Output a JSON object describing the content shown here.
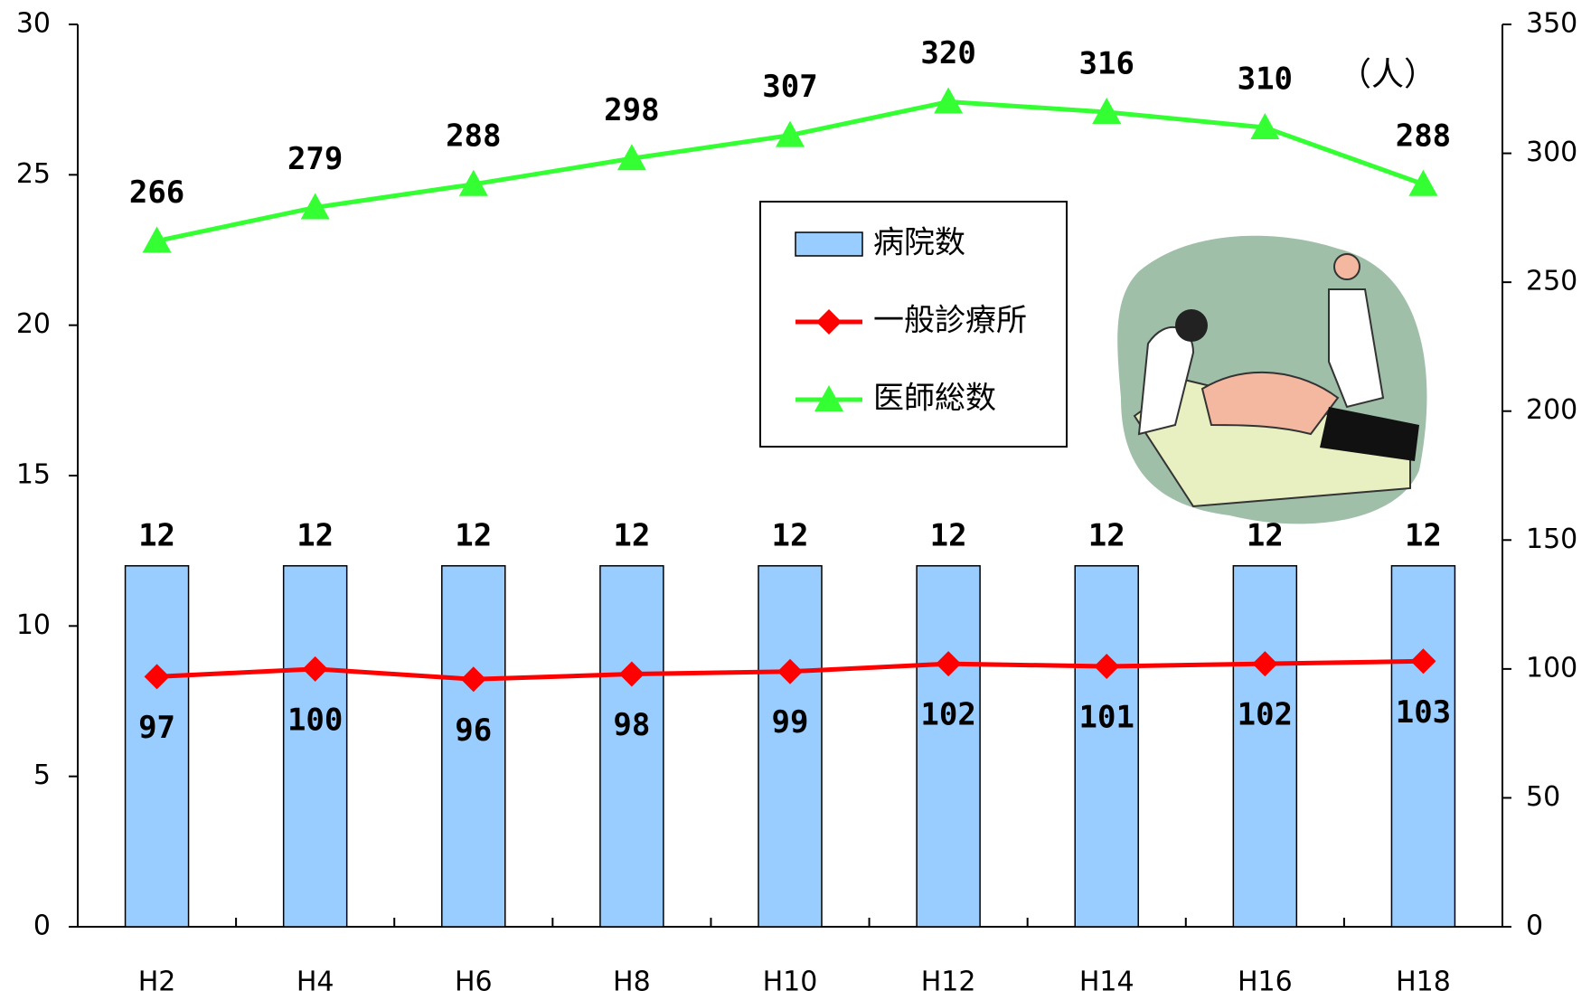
{
  "chart_data": {
    "type": "combo",
    "categories": [
      "H2",
      "H4",
      "H6",
      "H8",
      "H10",
      "H12",
      "H14",
      "H16",
      "H18"
    ],
    "series": [
      {
        "name": "病院数",
        "type": "bar",
        "color": "#99ccff",
        "values": [
          12,
          12,
          12,
          12,
          12,
          12,
          12,
          12,
          12
        ]
      },
      {
        "name": "一般診療所",
        "type": "line",
        "marker": "diamond",
        "axis": "y2",
        "color": "#ff0000",
        "values": [
          97,
          100,
          96,
          98,
          99,
          102,
          101,
          102,
          103
        ]
      },
      {
        "name": "医師総数",
        "type": "line",
        "marker": "triangle",
        "axis": "y2",
        "color": "#33ff33",
        "values": [
          266,
          279,
          288,
          298,
          307,
          320,
          316,
          310,
          288
        ]
      }
    ],
    "ylim": [
      0,
      30
    ],
    "yticks": [
      0,
      5,
      10,
      15,
      20,
      25,
      30
    ],
    "y2lim": [
      0,
      350
    ],
    "y2ticks": [
      0,
      50,
      100,
      150,
      200,
      250,
      300,
      350
    ],
    "annotation": "（人）"
  }
}
